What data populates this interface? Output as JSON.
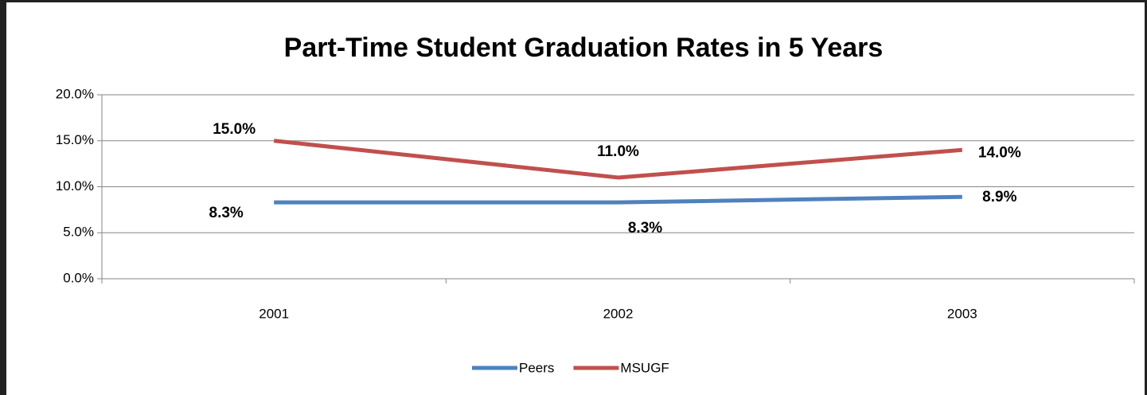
{
  "chart_data": {
    "type": "line",
    "title": "Part-Time Student Graduation Rates in 5 Years",
    "categories": [
      "2001",
      "2002",
      "2003"
    ],
    "series": [
      {
        "name": "Peers",
        "color": "#4f81bd",
        "label_color": "#254061",
        "values": [
          8.3,
          8.3,
          8.9
        ],
        "value_labels": [
          "8.3%",
          "8.3%",
          "8.9%"
        ]
      },
      {
        "name": "MSUGF",
        "color": "#c0504d",
        "label_color": "#7b2c2c",
        "values": [
          15.0,
          11.0,
          14.0
        ],
        "value_labels": [
          "15.0%",
          "11.0%",
          "14.0%"
        ]
      }
    ],
    "ylim": [
      0,
      20
    ],
    "yticks": [
      {
        "value": 0,
        "label": "0.0%"
      },
      {
        "value": 5,
        "label": "5.0%"
      },
      {
        "value": 10,
        "label": "10.0%"
      },
      {
        "value": 15,
        "label": "15.0%"
      },
      {
        "value": 20,
        "label": "20.0%"
      }
    ],
    "grid": true,
    "legend": "bottom"
  }
}
